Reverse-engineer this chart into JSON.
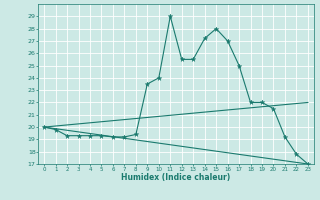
{
  "title": "",
  "xlabel": "Humidex (Indice chaleur)",
  "ylabel": "",
  "xlim": [
    -0.5,
    23.5
  ],
  "ylim": [
    17,
    30
  ],
  "yticks": [
    17,
    18,
    19,
    20,
    21,
    22,
    23,
    24,
    25,
    26,
    27,
    28,
    29
  ],
  "xticks": [
    0,
    1,
    2,
    3,
    4,
    5,
    6,
    7,
    8,
    9,
    10,
    11,
    12,
    13,
    14,
    15,
    16,
    17,
    18,
    19,
    20,
    21,
    22,
    23
  ],
  "bg_color": "#cce9e5",
  "grid_color": "#ffffff",
  "line_color": "#1a7a6e",
  "line1_x": [
    0,
    1,
    2,
    3,
    4,
    5,
    6,
    7,
    8,
    9,
    10,
    11,
    12,
    13,
    14,
    15,
    16,
    17,
    18,
    19,
    20,
    21,
    22,
    23
  ],
  "line1_y": [
    20.0,
    19.8,
    19.3,
    19.3,
    19.3,
    19.3,
    19.2,
    19.2,
    19.4,
    23.5,
    24.0,
    29.0,
    25.5,
    25.5,
    27.2,
    28.0,
    27.0,
    25.0,
    22.0,
    22.0,
    21.5,
    19.2,
    17.8,
    17.0
  ],
  "line2_x": [
    0,
    23
  ],
  "line2_y": [
    20.0,
    22.0
  ],
  "line3_x": [
    0,
    23
  ],
  "line3_y": [
    20.0,
    17.0
  ],
  "marker": "*",
  "markersize": 3.5,
  "linewidth": 0.8
}
